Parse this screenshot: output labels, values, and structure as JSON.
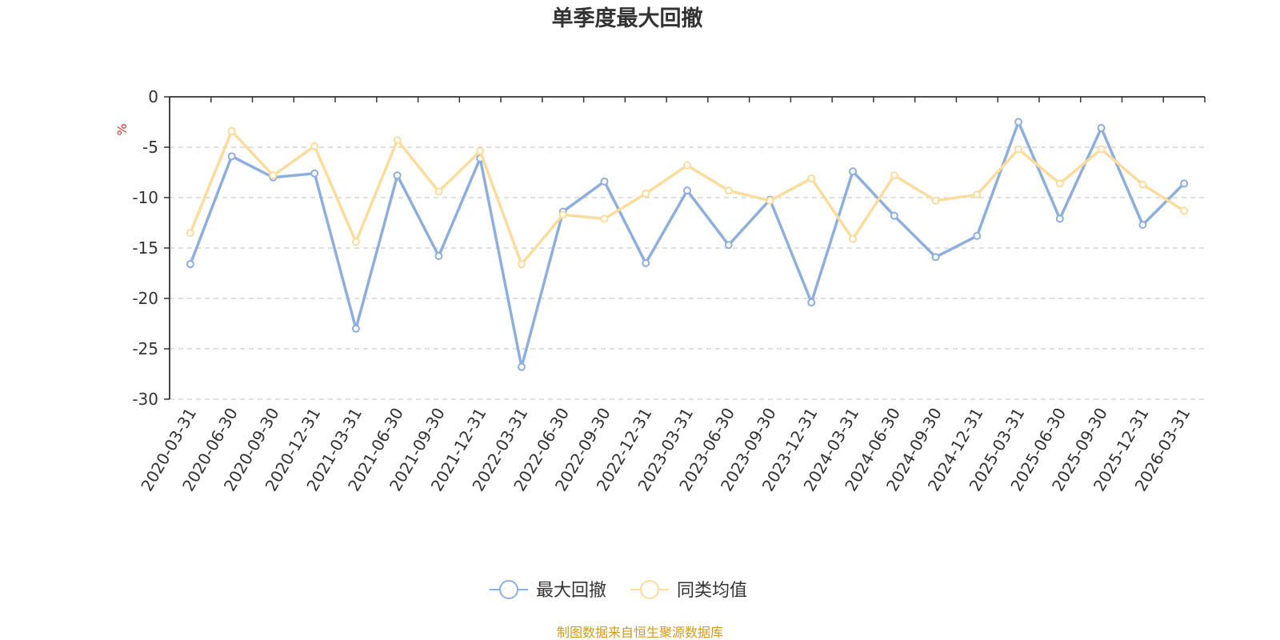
{
  "chart_data": {
    "type": "line",
    "title": "单季度最大回撤",
    "y_unit": "%",
    "ylim": [
      -30,
      0
    ],
    "y_ticks": [
      0,
      -5,
      -10,
      -15,
      -20,
      -25,
      -30
    ],
    "y_tick_labels": [
      "0",
      "-5",
      "-10",
      "-15",
      "-20",
      "-25",
      "-30"
    ],
    "grid": true,
    "legend_position": "bottom-center",
    "categories": [
      "2020-03-31",
      "2020-06-30",
      "2020-09-30",
      "2020-12-31",
      "2021-03-31",
      "2021-06-30",
      "2021-09-30",
      "2021-12-31",
      "2022-03-31",
      "2022-06-30",
      "2022-09-30",
      "2022-12-31",
      "2023-03-31",
      "2023-06-30",
      "2023-09-30",
      "2023-12-31",
      "2024-03-31",
      "2024-06-30",
      "2024-09-30",
      "2024-12-31",
      "2025-03-31",
      "2025-06-30",
      "2025-09-30",
      "2025-12-31",
      "2026-03-31"
    ],
    "series": [
      {
        "name": "最大回撤",
        "color": "#8eafdc",
        "values": [
          -16.6,
          -5.9,
          -8.0,
          -7.6,
          -23.0,
          -7.8,
          -15.8,
          -6.1,
          -26.8,
          -11.4,
          -8.4,
          -16.5,
          -9.3,
          -14.7,
          -10.2,
          -20.4,
          -7.4,
          -11.8,
          -15.9,
          -13.8,
          -2.5,
          -12.1,
          -3.1,
          -12.7,
          -8.6
        ]
      },
      {
        "name": "同类均值",
        "color": "#fcdc9c",
        "values": [
          -13.5,
          -3.4,
          -7.8,
          -4.9,
          -14.4,
          -4.3,
          -9.4,
          -5.4,
          -16.6,
          -11.7,
          -12.1,
          -9.6,
          -6.8,
          -9.3,
          -10.3,
          -8.1,
          -14.1,
          -7.8,
          -10.3,
          -9.7,
          -5.2,
          -8.6,
          -5.2,
          -8.7,
          -11.3
        ]
      }
    ]
  },
  "footer": {
    "source_text": "制图数据来自恒生聚源数据库",
    "source_color": "#d09a22"
  },
  "colors": {
    "axis": "#333333",
    "grid": "#cccccc",
    "unit": "#e6302e"
  }
}
